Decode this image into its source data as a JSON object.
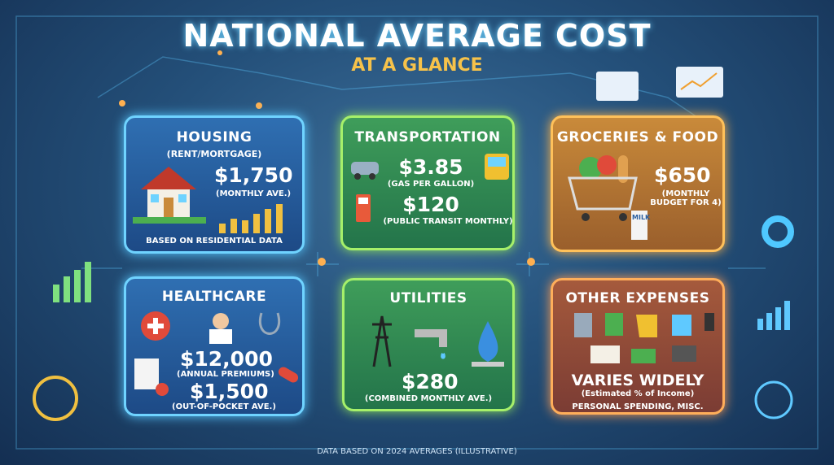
{
  "header": {
    "title": "NATIONAL AVERAGE COST",
    "subtitle": "AT A GLANCE"
  },
  "cards": [
    {
      "title": "HOUSING",
      "subtitle": "(RENT/MORTGAGE)",
      "items": [
        {
          "value": "$1,750",
          "label": "(MONTHLY AVE.)"
        }
      ],
      "note": "BASED ON RESIDENTIAL DATA"
    },
    {
      "title": "TRANSPORTATION",
      "items": [
        {
          "value": "$3.85",
          "label": "(GAS PER GALLON)"
        },
        {
          "value": "$120",
          "label": "(PUBLIC TRANSIT MONTHLY)"
        }
      ]
    },
    {
      "title": "GROCERIES & FOOD",
      "items": [
        {
          "value": "$650",
          "label": "(MONTHLY BUDGET FOR 4)"
        }
      ],
      "icon_text": "MILK"
    },
    {
      "title": "HEALTHCARE",
      "items": [
        {
          "value": "$12,000",
          "label": "(ANNUAL PREMIUMS)"
        },
        {
          "value": "$1,500",
          "label": "(OUT-OF-POCKET AVE.)"
        }
      ]
    },
    {
      "title": "UTILITIES",
      "items": [
        {
          "value": "$280",
          "label": "(COMBINED MONTHLY AVE.)"
        }
      ]
    },
    {
      "title": "OTHER EXPENSES",
      "items": [
        {
          "value": "VARIES WIDELY",
          "label": "(Estimated % of Income)"
        }
      ],
      "note": "PERSONAL SPENDING, MISC."
    }
  ],
  "footer": "DATA BASED ON 2024 AVERAGES (ILLUSTRATIVE)"
}
